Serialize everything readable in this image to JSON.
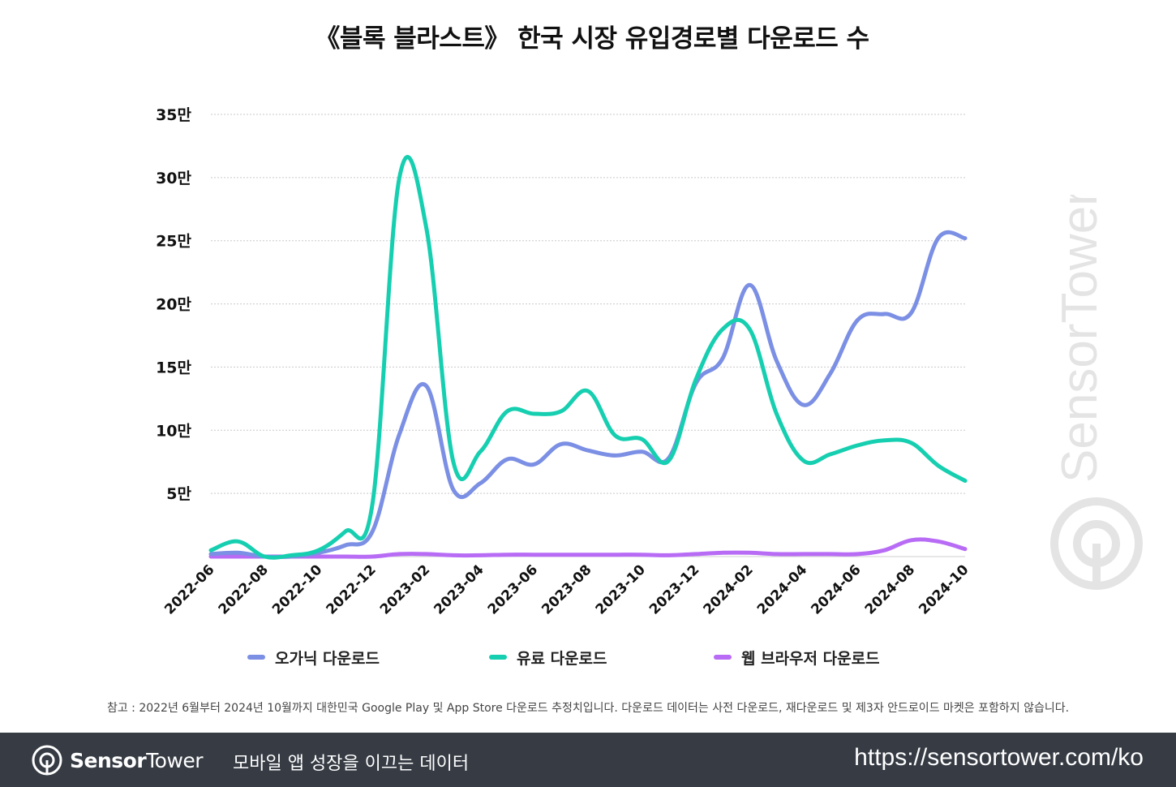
{
  "title": "《블록 블라스트》 한국 시장 유입경로별 다운로드 수",
  "note": "참고 : 2022년 6월부터 2024년 10월까지 대한민국 Google Play 및 App Store 다운로드 추정치입니다. 다운로드 데이터는 사전 다운로드, 재다운로드 및 제3자 안드로이드 마켓은 포함하지 않습니다.",
  "footer": {
    "brand_bold": "Sensor",
    "brand_light": "Tower",
    "tagline": "모바일 앱 성장을 이끄는 데이터",
    "url": "https://sensortower.com/ko"
  },
  "watermark": {
    "text": "SensorTower"
  },
  "colors": {
    "organic": "#7b8fe4",
    "paid": "#16cfb0",
    "web": "#b86cf5",
    "grid": "#c9c9c9",
    "footer_bg": "#363b44"
  },
  "chart_data": {
    "type": "line",
    "title": "《블록 블라스트》 한국 시장 유입경로별 다운로드 수",
    "ylim": [
      0,
      350000
    ],
    "yticks": [
      {
        "value": 50000,
        "label": "5만"
      },
      {
        "value": 100000,
        "label": "10만"
      },
      {
        "value": 150000,
        "label": "15만"
      },
      {
        "value": 200000,
        "label": "20만"
      },
      {
        "value": 250000,
        "label": "25만"
      },
      {
        "value": 300000,
        "label": "30만"
      },
      {
        "value": 350000,
        "label": "35만"
      }
    ],
    "xtick_labels": [
      "2022-06",
      "2022-08",
      "2022-10",
      "2022-12",
      "2023-02",
      "2023-04",
      "2023-06",
      "2023-08",
      "2023-10",
      "2023-12",
      "2024-02",
      "2024-04",
      "2024-06",
      "2024-08",
      "2024-10"
    ],
    "x": [
      "2022-06",
      "2022-07",
      "2022-08",
      "2022-09",
      "2022-10",
      "2022-11",
      "2022-12",
      "2023-01",
      "2023-02",
      "2023-03",
      "2023-04",
      "2023-05",
      "2023-06",
      "2023-07",
      "2023-08",
      "2023-09",
      "2023-10",
      "2023-11",
      "2023-12",
      "2024-01",
      "2024-02",
      "2024-03",
      "2024-04",
      "2024-05",
      "2024-06",
      "2024-07",
      "2024-08",
      "2024-09",
      "2024-10"
    ],
    "grid": true,
    "legend": "bottom",
    "series": [
      {
        "name": "오가닉 다운로드",
        "color": "#7b8fe4",
        "values": [
          2000,
          3000,
          0,
          0,
          3000,
          9000,
          20000,
          97000,
          135000,
          53000,
          58000,
          77000,
          73000,
          89000,
          84000,
          80000,
          83000,
          78000,
          137000,
          157000,
          215000,
          155000,
          120000,
          145000,
          187000,
          192000,
          193000,
          252000,
          252000
        ]
      },
      {
        "name": "유료 다운로드",
        "color": "#16cfb0",
        "values": [
          5000,
          12000,
          0,
          1000,
          5000,
          20000,
          42000,
          300000,
          260000,
          75000,
          83000,
          115000,
          113000,
          115000,
          131000,
          96000,
          93000,
          76000,
          140000,
          180000,
          180000,
          113000,
          76000,
          81000,
          88000,
          92000,
          90000,
          72000,
          60000
        ]
      },
      {
        "name": "웹 브라우저 다운로드",
        "color": "#b86cf5",
        "values": [
          0,
          0,
          0,
          0,
          0,
          0,
          0,
          2000,
          2000,
          1000,
          1000,
          1500,
          1500,
          1500,
          1500,
          1500,
          1500,
          1000,
          2000,
          3000,
          3000,
          2000,
          2000,
          2000,
          2000,
          5000,
          13000,
          12000,
          6000
        ]
      }
    ]
  }
}
